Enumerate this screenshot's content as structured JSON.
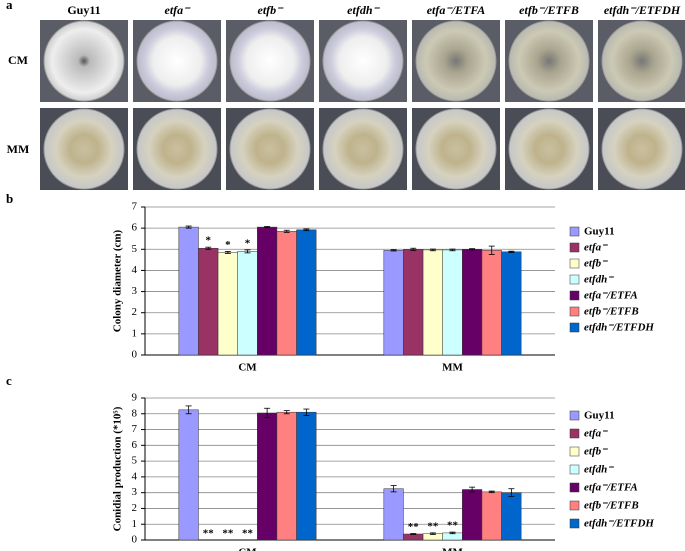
{
  "panel_a": {
    "label": "a",
    "columns": [
      "Guy11",
      "etfa⁻",
      "etfb⁻",
      "etfdh⁻",
      "etfa⁻/ETFA",
      "etfb⁻/ETFB",
      "etfdh⁻/ETFDH"
    ],
    "rows": [
      "CM",
      "MM"
    ]
  },
  "chart_data": [
    {
      "type": "bar",
      "panel_label": "b",
      "ylabel": "Colony diameter (cm)",
      "categories": [
        "CM",
        "MM"
      ],
      "series": [
        {
          "name": "Guy11",
          "color": "#9999ff",
          "values": [
            6.05,
            4.95
          ],
          "errors": [
            0.05,
            0.03
          ],
          "marks": [
            null,
            null
          ]
        },
        {
          "name": "etfa⁻",
          "color": "#993366",
          "values": [
            5.05,
            5.0
          ],
          "errors": [
            0.05,
            0.05
          ],
          "marks": [
            "*",
            null
          ]
        },
        {
          "name": "etfb⁻",
          "color": "#ffffcc",
          "values": [
            4.85,
            4.97
          ],
          "errors": [
            0.05,
            0.04
          ],
          "marks": [
            "*",
            null
          ]
        },
        {
          "name": "etfdh⁻",
          "color": "#ccffff",
          "values": [
            4.9,
            4.97
          ],
          "errors": [
            0.07,
            0.04
          ],
          "marks": [
            "*",
            null
          ]
        },
        {
          "name": "etfa⁻/ETFA",
          "color": "#660066",
          "values": [
            6.05,
            5.0
          ],
          "errors": [
            0.03,
            0.03
          ],
          "marks": [
            null,
            null
          ]
        },
        {
          "name": "etfb⁻/ETFB",
          "color": "#ff8080",
          "values": [
            5.85,
            4.95
          ],
          "errors": [
            0.05,
            0.2
          ],
          "marks": [
            null,
            null
          ]
        },
        {
          "name": "etfdh⁻/ETFDH",
          "color": "#0066cc",
          "values": [
            5.92,
            4.88
          ],
          "errors": [
            0.04,
            0.03
          ],
          "marks": [
            null,
            null
          ]
        }
      ],
      "ylim": [
        0,
        7
      ],
      "yticks": [
        0,
        1,
        2,
        3,
        4,
        5,
        6,
        7
      ],
      "grid": true
    },
    {
      "type": "bar",
      "panel_label": "c",
      "ylabel": "Conidial production (*10⁵)",
      "categories": [
        "CM",
        "MM"
      ],
      "series": [
        {
          "name": "Guy11",
          "color": "#9999ff",
          "values": [
            8.25,
            3.25
          ],
          "errors": [
            0.25,
            0.2
          ],
          "marks": [
            null,
            null
          ]
        },
        {
          "name": "etfa⁻",
          "color": "#993366",
          "values": [
            0,
            0.38
          ],
          "errors": [
            0,
            0.03
          ],
          "marks": [
            "**",
            "**"
          ]
        },
        {
          "name": "etfb⁻",
          "color": "#ffffcc",
          "values": [
            0,
            0.4
          ],
          "errors": [
            0,
            0.05
          ],
          "marks": [
            "**",
            "**"
          ]
        },
        {
          "name": "etfdh⁻",
          "color": "#ccffff",
          "values": [
            0,
            0.45
          ],
          "errors": [
            0,
            0.05
          ],
          "marks": [
            "**",
            "**"
          ]
        },
        {
          "name": "etfa⁻/ETFA",
          "color": "#660066",
          "values": [
            8.05,
            3.2
          ],
          "errors": [
            0.3,
            0.15
          ],
          "marks": [
            null,
            null
          ]
        },
        {
          "name": "etfb⁻/ETFB",
          "color": "#ff8080",
          "values": [
            8.1,
            3.05
          ],
          "errors": [
            0.1,
            0.05
          ],
          "marks": [
            null,
            null
          ]
        },
        {
          "name": "etfdh⁻/ETFDH",
          "color": "#0066cc",
          "values": [
            8.1,
            3.0
          ],
          "errors": [
            0.2,
            0.25
          ],
          "marks": [
            null,
            null
          ]
        }
      ],
      "ylim": [
        0,
        9
      ],
      "yticks": [
        0,
        1,
        2,
        3,
        4,
        5,
        6,
        7,
        8,
        9
      ],
      "grid": true
    }
  ]
}
